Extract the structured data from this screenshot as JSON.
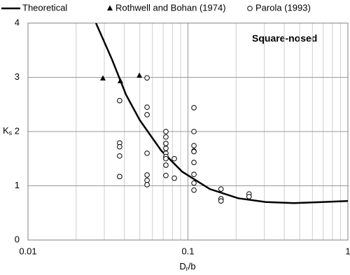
{
  "chart_data": {
    "type": "scatter",
    "annotation": "Square-nosed",
    "xlabel": {
      "text": "D",
      "sub": "r",
      "rest": "/b"
    },
    "ylabel": {
      "text": "K",
      "sub": "s"
    },
    "xscale": "log",
    "xlim": [
      0.01,
      1
    ],
    "ylim": [
      0,
      4
    ],
    "xticks": [
      0.01,
      0.1,
      1
    ],
    "xminor": [
      0.02,
      0.03,
      0.04,
      0.05,
      0.06,
      0.07,
      0.08,
      0.09,
      0.2,
      0.3,
      0.4,
      0.5,
      0.6,
      0.7,
      0.8,
      0.9
    ],
    "yticks": [
      0,
      1,
      2,
      3,
      4
    ],
    "grid": true,
    "series": [
      {
        "name": "Theoretical",
        "style": "line",
        "color": "#000000",
        "x": [
          0.0266,
          0.0335,
          0.041,
          0.05,
          0.068,
          0.092,
          0.137,
          0.206,
          0.307,
          0.46,
          0.69,
          1.0
        ],
        "y": [
          4.0,
          3.33,
          2.68,
          2.21,
          1.65,
          1.26,
          0.94,
          0.77,
          0.7,
          0.68,
          0.7,
          0.72
        ]
      },
      {
        "name": "Rothwell and Bohan (1974)",
        "style": "triangle",
        "color": "#000000",
        "x": [
          0.0294,
          0.0378,
          0.0497
        ],
        "y": [
          2.98,
          2.93,
          3.03
        ]
      },
      {
        "name": "Parola (1993)",
        "style": "circle",
        "color": "#000000",
        "x": [
          0.0374,
          0.0374,
          0.0374,
          0.0374,
          0.0374,
          0.0555,
          0.0555,
          0.0555,
          0.0555,
          0.0555,
          0.0555,
          0.0555,
          0.0728,
          0.0728,
          0.0728,
          0.0728,
          0.0728,
          0.0728,
          0.0728,
          0.0728,
          0.0728,
          0.0822,
          0.0822,
          0.109,
          0.109,
          0.109,
          0.109,
          0.109,
          0.109,
          0.109,
          0.109,
          0.109,
          0.161,
          0.161,
          0.161,
          0.241,
          0.241
        ],
        "y": [
          2.57,
          1.79,
          1.72,
          1.55,
          1.17,
          2.99,
          2.45,
          2.31,
          1.6,
          1.2,
          1.1,
          1.02,
          2.0,
          1.9,
          1.78,
          1.69,
          1.6,
          1.54,
          1.5,
          1.38,
          1.19,
          1.5,
          1.14,
          2.44,
          2.0,
          1.74,
          1.64,
          1.63,
          1.43,
          1.21,
          1.05,
          0.92,
          0.94,
          0.76,
          0.72,
          0.85,
          0.8
        ]
      }
    ]
  }
}
